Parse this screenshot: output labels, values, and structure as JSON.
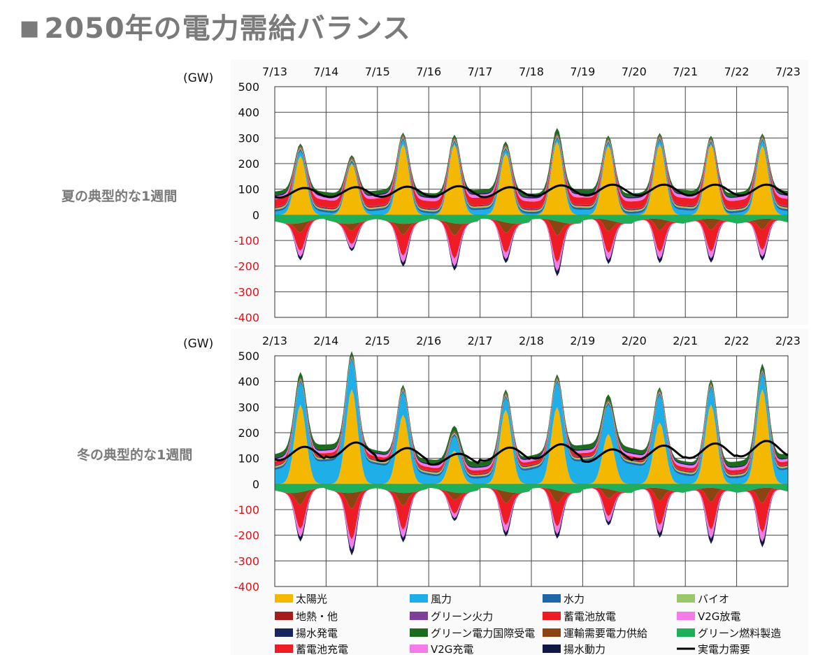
{
  "page": {
    "title": "2050年の電力需給バランス",
    "summer_label": "夏の典型的な1週間",
    "winter_label": "冬の典型的な1週間"
  },
  "chart_data": [
    {
      "type": "area",
      "season": "summer",
      "unit_label": "(GW)",
      "x": [
        "7/13",
        "7/14",
        "7/15",
        "7/16",
        "7/17",
        "7/18",
        "7/19",
        "7/20",
        "7/21",
        "7/22",
        "7/23"
      ],
      "y_ticks": [
        500,
        400,
        300,
        200,
        100,
        0,
        -100,
        -200,
        -300,
        -400
      ],
      "ylim": [
        -400,
        500
      ],
      "grid": true,
      "daily_peaks": {
        "solar": [
          230,
          200,
          275,
          275,
          240,
          285,
          270,
          275,
          275,
          270
        ],
        "total_supply": [
          270,
          230,
          310,
          325,
          295,
          365,
          320,
          315,
          320,
          305
        ],
        "demand": [
          105,
          108,
          110,
          112,
          108,
          115,
          118,
          118,
          118,
          118
        ],
        "charge_min": [
          -170,
          -125,
          -195,
          -215,
          -185,
          -250,
          -200,
          -200,
          -200,
          -190
        ]
      }
    },
    {
      "type": "area",
      "season": "winter",
      "unit_label": "(GW)",
      "x": [
        "2/13",
        "2/14",
        "2/15",
        "2/16",
        "2/17",
        "2/18",
        "2/19",
        "2/20",
        "2/21",
        "2/22",
        "2/23"
      ],
      "y_ticks": [
        500,
        400,
        300,
        200,
        100,
        0,
        -100,
        -200,
        -300,
        -400
      ],
      "ylim": [
        -400,
        500
      ],
      "grid": true,
      "daily_peaks": {
        "solar": [
          310,
          370,
          270,
          130,
          290,
          300,
          195,
          240,
          310,
          370
        ],
        "total_supply": [
          375,
          460,
          370,
          235,
          355,
          380,
          285,
          375,
          430,
          455
        ],
        "demand": [
          145,
          162,
          140,
          118,
          142,
          155,
          135,
          150,
          158,
          168
        ],
        "charge_min": [
          -225,
          -285,
          -225,
          -130,
          -205,
          -220,
          -165,
          -225,
          -255,
          -270
        ]
      }
    }
  ],
  "legend": [
    {
      "label": "太陽光",
      "color": "#f5b800",
      "shape": "box"
    },
    {
      "label": "風力",
      "color": "#1eaee8",
      "shape": "box"
    },
    {
      "label": "水力",
      "color": "#1f66a8",
      "shape": "box"
    },
    {
      "label": "バイオ",
      "color": "#9bc76a",
      "shape": "box"
    },
    {
      "label": "地熱・他",
      "color": "#a61c1c",
      "shape": "box"
    },
    {
      "label": "グリーン火力",
      "color": "#7e3f99",
      "shape": "box"
    },
    {
      "label": "蓄電池放電",
      "color": "#ee1c25",
      "shape": "box"
    },
    {
      "label": "V2G放電",
      "color": "#f47ce8",
      "shape": "box"
    },
    {
      "label": "揚水発電",
      "color": "#1a2560",
      "shape": "box"
    },
    {
      "label": "グリーン電力国際受電",
      "color": "#1d6b1d",
      "shape": "box"
    },
    {
      "label": "運輸需要電力供給",
      "color": "#8b4513",
      "shape": "box"
    },
    {
      "label": "グリーン燃料製造",
      "color": "#1faf5a",
      "shape": "box"
    },
    {
      "label": "蓄電池充電",
      "color": "#ee1c25",
      "shape": "box"
    },
    {
      "label": "V2G充電",
      "color": "#f47ce8",
      "shape": "box"
    },
    {
      "label": "揚水動力",
      "color": "#101845",
      "shape": "box"
    },
    {
      "label": "実電力需要",
      "color": "#000000",
      "shape": "line"
    }
  ]
}
